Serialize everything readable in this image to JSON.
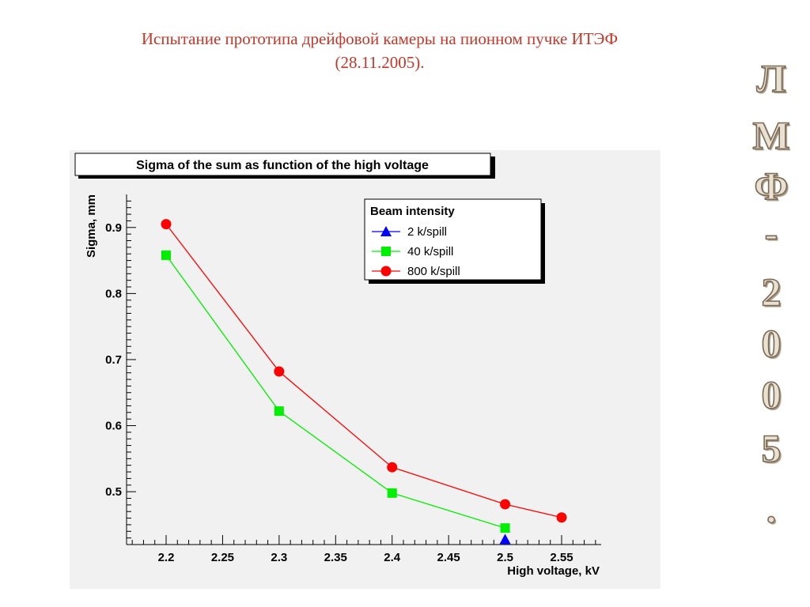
{
  "slide": {
    "title_line1": "Испытание прототипа дрейфовой камеры на пионном пучке ИТЭФ",
    "title_line2": "(28.11.2005).",
    "side_chars": [
      "Л",
      "М",
      "Ф",
      "-",
      "2",
      "0",
      "0",
      "5",
      "."
    ]
  },
  "chart_data": {
    "type": "line",
    "title": "Sigma of the sum as function of the high voltage",
    "xlabel": "High voltage, kV",
    "ylabel": "Sigma, mm",
    "xlim": [
      2.165,
      2.585
    ],
    "ylim": [
      0.42,
      0.95
    ],
    "xticks": [
      "2.2",
      "2.25",
      "2.3",
      "2.35",
      "2.4",
      "2.45",
      "2.5",
      "2.55"
    ],
    "yticks": [
      "0.5",
      "0.6",
      "0.7",
      "0.8",
      "0.9"
    ],
    "grid": false,
    "legend": {
      "title": "Beam intensity",
      "position": "top-right"
    },
    "series": [
      {
        "name": "2 k/spill",
        "color": "#0000ff",
        "marker": "triangle",
        "x": [
          2.5
        ],
        "y": [
          0.428
        ]
      },
      {
        "name": "40 k/spill",
        "color": "#00ee00",
        "marker": "square",
        "x": [
          2.2,
          2.3,
          2.4,
          2.5
        ],
        "y": [
          0.858,
          0.622,
          0.498,
          0.445
        ]
      },
      {
        "name": "800 k/spill",
        "color": "#ff0000",
        "marker": "circle",
        "x": [
          2.2,
          2.3,
          2.4,
          2.5,
          2.55
        ],
        "y": [
          0.905,
          0.682,
          0.537,
          0.481,
          0.461
        ]
      }
    ]
  }
}
